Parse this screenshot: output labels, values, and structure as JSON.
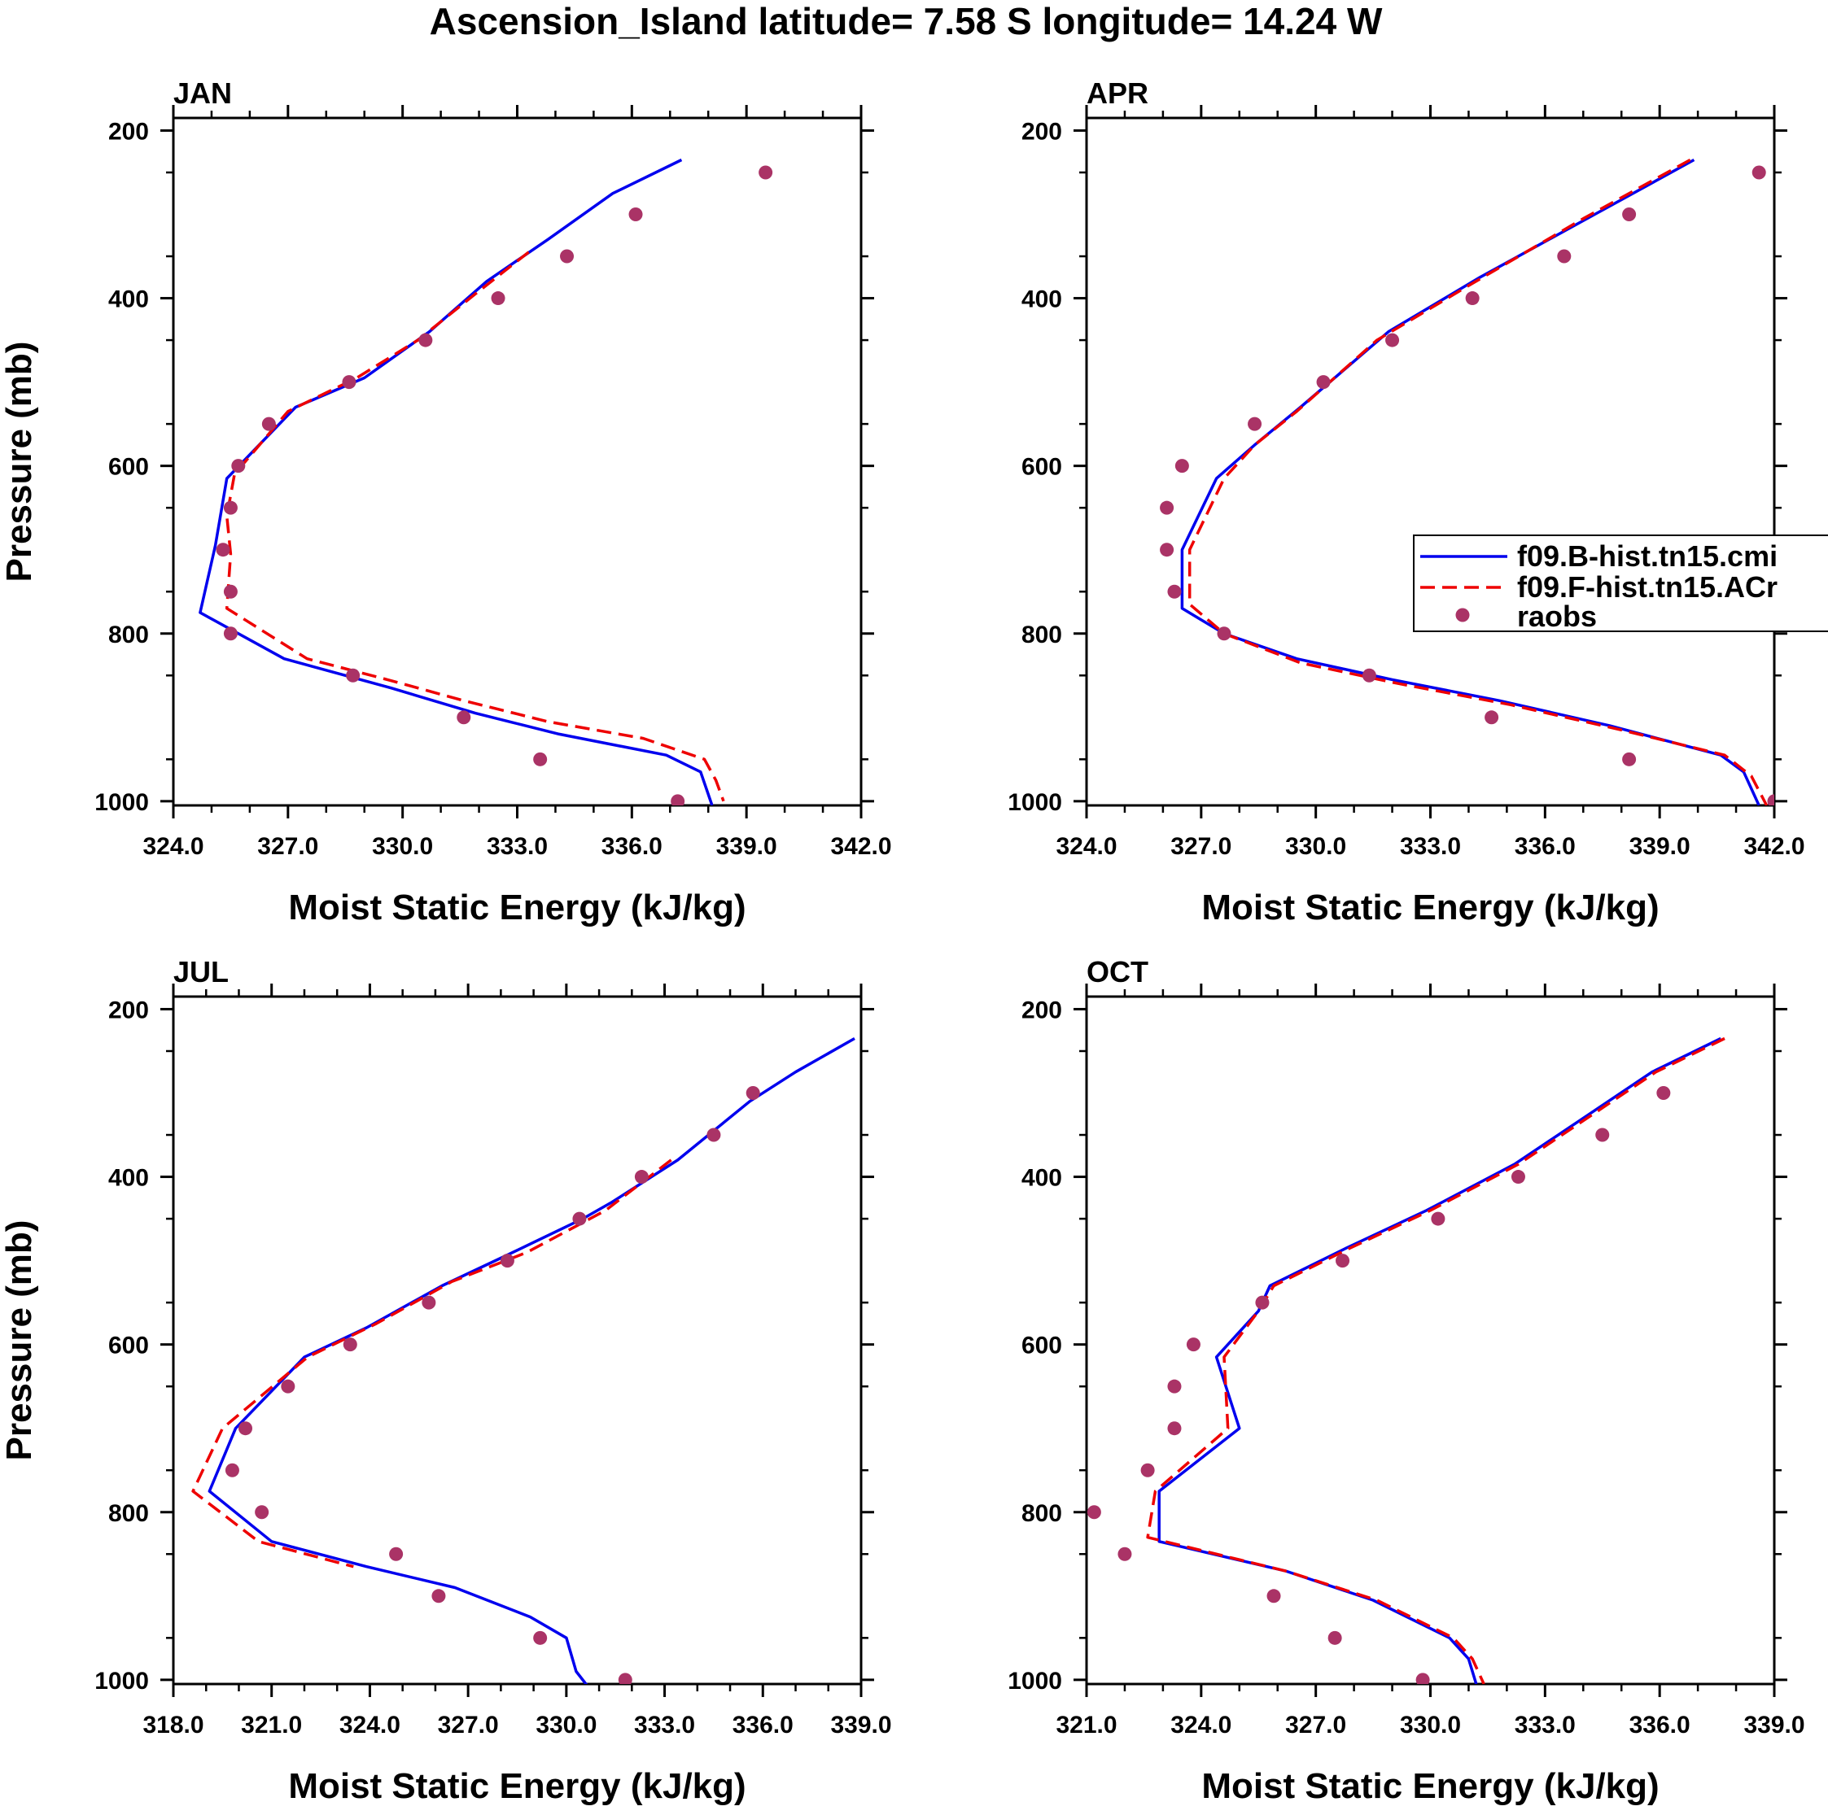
{
  "suptitle": "Ascension_Island  latitude= 7.58 S longitude= 14.24 W",
  "colors": {
    "model_b": "#0000ee",
    "model_f": "#ee0000",
    "raobs": "#aa3366",
    "axis": "#000000"
  },
  "chart_data": [
    {
      "type": "line",
      "title": "JAN",
      "xlabel": "Moist Static Energy (kJ/kg)",
      "ylabel": "Pressure (mb)",
      "xlim": [
        324,
        342
      ],
      "ylim": [
        1000,
        200
      ],
      "xticks": [
        324,
        327,
        330,
        333,
        336,
        339,
        342
      ],
      "xtick_labels": [
        "324.0",
        "327.0",
        "330.0",
        "333.0",
        "336.0",
        "339.0",
        "342.0"
      ],
      "yticks": [
        200,
        400,
        600,
        800,
        1000
      ],
      "ytick_labels": [
        "200",
        "400",
        "600",
        "800",
        "1000"
      ],
      "series": [
        {
          "name": "f09.B-hist.tn15.cmi",
          "style": "solid",
          "x": [
            337.3,
            335.5,
            333.8,
            332.2,
            330.7,
            329.0,
            327.2,
            325.4,
            325.1,
            324.7,
            326.9,
            329.7,
            331.9,
            334.1,
            336.9,
            337.8,
            338.1
          ],
          "y": [
            235,
            275,
            330,
            380,
            440,
            495,
            530,
            615,
            695,
            775,
            830,
            865,
            895,
            920,
            945,
            965,
            1005
          ]
        },
        {
          "name": "f09.F-hist.tn15.ACr",
          "style": "dashed",
          "x": [
            333.3,
            331.9,
            330.4,
            328.8,
            327.0,
            325.6,
            325.4,
            325.5,
            325.4,
            327.5,
            329.6,
            331.6,
            333.8,
            336.3,
            337.9,
            338.2,
            338.4
          ],
          "y": [
            345,
            395,
            450,
            495,
            535,
            610,
            660,
            705,
            770,
            830,
            855,
            880,
            905,
            925,
            950,
            975,
            1000
          ]
        },
        {
          "name": "raobs",
          "style": "dots",
          "x": [
            339.5,
            336.1,
            334.3,
            332.5,
            330.6,
            328.6,
            326.5,
            325.7,
            325.5,
            325.3,
            325.5,
            325.5,
            328.7,
            331.6,
            333.6,
            337.2
          ],
          "y": [
            250,
            300,
            350,
            400,
            450,
            500,
            550,
            600,
            650,
            700,
            750,
            800,
            850,
            900,
            950,
            1000
          ]
        }
      ]
    },
    {
      "type": "line",
      "title": "APR",
      "xlabel": "Moist Static Energy (kJ/kg)",
      "ylabel": "",
      "xlim": [
        324,
        342
      ],
      "ylim": [
        1000,
        200
      ],
      "xticks": [
        324,
        327,
        330,
        333,
        336,
        339,
        342
      ],
      "xtick_labels": [
        "324.0",
        "327.0",
        "330.0",
        "333.0",
        "336.0",
        "339.0",
        "342.0"
      ],
      "yticks": [
        200,
        400,
        600,
        800,
        1000
      ],
      "ytick_labels": [
        "200",
        "400",
        "600",
        "800",
        "1000"
      ],
      "legend": {
        "position": "right",
        "entries": [
          "f09.B-hist.tn15.cmi",
          "f09.F-hist.tn15.ACr",
          "raobs"
        ]
      },
      "series": [
        {
          "name": "f09.B-hist.tn15.cmi",
          "style": "solid",
          "x": [
            339.9,
            337.3,
            334.3,
            331.9,
            329.6,
            328.4,
            327.4,
            326.5,
            326.5,
            327.6,
            329.5,
            332.0,
            334.8,
            337.7,
            340.6,
            341.2,
            341.6
          ],
          "y": [
            235,
            300,
            375,
            440,
            530,
            575,
            615,
            700,
            770,
            800,
            830,
            855,
            880,
            910,
            945,
            965,
            1005
          ]
        },
        {
          "name": "f09.F-hist.tn15.ACr",
          "style": "dashed",
          "x": [
            339.8,
            337.0,
            334.0,
            331.6,
            329.5,
            328.4,
            327.6,
            326.7,
            326.7,
            327.6,
            329.6,
            332.2,
            335.1,
            338.0,
            340.7,
            341.4,
            341.8
          ],
          "y": [
            235,
            305,
            385,
            450,
            535,
            575,
            615,
            700,
            765,
            800,
            835,
            860,
            885,
            915,
            945,
            970,
            1005
          ]
        },
        {
          "name": "raobs",
          "style": "dots",
          "x": [
            341.6,
            338.2,
            336.5,
            334.1,
            332.0,
            330.2,
            328.4,
            326.5,
            326.1,
            326.1,
            326.3,
            327.6,
            331.4,
            334.6,
            338.2,
            342.0
          ],
          "y": [
            250,
            300,
            350,
            400,
            450,
            500,
            550,
            600,
            650,
            700,
            750,
            800,
            850,
            900,
            950,
            1000
          ]
        }
      ]
    },
    {
      "type": "line",
      "title": "JUL",
      "xlabel": "Moist Static Energy (kJ/kg)",
      "ylabel": "Pressure (mb)",
      "xlim": [
        318,
        339
      ],
      "ylim": [
        1000,
        200
      ],
      "xticks": [
        318,
        321,
        324,
        327,
        330,
        333,
        336,
        339
      ],
      "xtick_labels": [
        "318.0",
        "321.0",
        "324.0",
        "327.0",
        "330.0",
        "333.0",
        "336.0",
        "339.0"
      ],
      "yticks": [
        200,
        400,
        600,
        800,
        1000
      ],
      "ytick_labels": [
        "200",
        "400",
        "600",
        "800",
        "1000"
      ],
      "series": [
        {
          "name": "f09.B-hist.tn15.cmi",
          "style": "solid",
          "x": [
            338.8,
            337.0,
            335.6,
            333.4,
            331.4,
            330.5,
            328.1,
            326.2,
            323.9,
            322.0,
            319.9,
            319.1,
            321.0,
            323.9,
            326.6,
            328.9,
            330.0,
            330.3,
            330.7
          ],
          "y": [
            235,
            275,
            310,
            380,
            430,
            450,
            495,
            530,
            580,
            615,
            700,
            775,
            835,
            865,
            890,
            925,
            950,
            990,
            1010
          ]
        },
        {
          "name": "f09.F-hist.tn15.ACr",
          "style": "dashed",
          "x": [
            333.2,
            331.2,
            328.8,
            326.5,
            324.2,
            322.1,
            319.5,
            318.6,
            320.6,
            323.5
          ],
          "y": [
            380,
            440,
            490,
            525,
            575,
            615,
            700,
            775,
            835,
            865
          ]
        },
        {
          "name": "raobs",
          "style": "dots",
          "x": [
            335.7,
            334.5,
            332.3,
            330.4,
            328.2,
            325.8,
            323.4,
            321.5,
            320.2,
            319.8,
            320.7,
            324.8,
            326.1,
            329.2,
            331.8
          ],
          "y": [
            300,
            350,
            400,
            450,
            500,
            550,
            600,
            650,
            700,
            750,
            800,
            850,
            900,
            950,
            1000
          ]
        }
      ]
    },
    {
      "type": "line",
      "title": "OCT",
      "xlabel": "Moist Static Energy (kJ/kg)",
      "ylabel": "",
      "xlim": [
        321,
        339
      ],
      "ylim": [
        1000,
        200
      ],
      "xticks": [
        321,
        324,
        327,
        330,
        333,
        336,
        339
      ],
      "xtick_labels": [
        "321.0",
        "324.0",
        "327.0",
        "330.0",
        "333.0",
        "336.0",
        "339.0"
      ],
      "yticks": [
        200,
        400,
        600,
        800,
        1000
      ],
      "ytick_labels": [
        "200",
        "400",
        "600",
        "800",
        "1000"
      ],
      "series": [
        {
          "name": "f09.B-hist.tn15.cmi",
          "style": "solid",
          "x": [
            337.6,
            335.8,
            334.0,
            332.2,
            329.9,
            327.8,
            325.8,
            325.5,
            324.4,
            325.0,
            322.9,
            322.9,
            326.2,
            328.5,
            330.5,
            331.0,
            331.2
          ],
          "y": [
            235,
            275,
            330,
            385,
            440,
            485,
            530,
            560,
            615,
            700,
            775,
            835,
            870,
            905,
            950,
            975,
            1005
          ]
        },
        {
          "name": "f09.F-hist.tn15.ACr",
          "style": "dashed",
          "x": [
            337.7,
            335.9,
            334.1,
            332.3,
            330.0,
            327.9,
            325.9,
            325.5,
            324.6,
            324.7,
            322.8,
            322.6,
            326.2,
            328.6,
            330.6,
            331.1,
            331.4
          ],
          "y": [
            235,
            275,
            330,
            385,
            440,
            485,
            530,
            560,
            615,
            700,
            775,
            830,
            870,
            905,
            950,
            975,
            1005
          ]
        },
        {
          "name": "raobs",
          "style": "dots",
          "x": [
            336.1,
            334.5,
            332.3,
            330.2,
            327.7,
            325.6,
            323.8,
            323.3,
            323.3,
            322.6,
            321.2,
            322.0,
            325.9,
            327.5,
            329.8
          ],
          "y": [
            300,
            350,
            400,
            450,
            500,
            550,
            600,
            650,
            700,
            750,
            800,
            850,
            900,
            950,
            1000
          ]
        }
      ]
    }
  ]
}
